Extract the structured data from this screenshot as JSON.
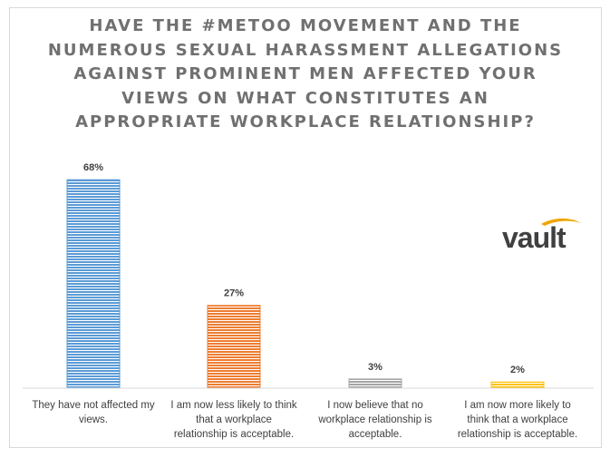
{
  "chart_data": {
    "type": "bar",
    "title": "HAVE THE #METOO MOVEMENT AND THE NUMEROUS SEXUAL HARASSMENT ALLEGATIONS AGAINST PROMINENT MEN AFFECTED YOUR VIEWS ON WHAT CONSTITUTES AN APPROPRIATE WORKPLACE RELATIONSHIP?",
    "title_lines": [
      "HAVE THE #METOO MOVEMENT AND THE",
      "NUMEROUS SEXUAL HARASSMENT ALLEGATIONS",
      "AGAINST PROMINENT MEN AFFECTED YOUR",
      "VIEWS ON WHAT CONSTITUTES AN",
      "APPROPRIATE WORKPLACE RELATIONSHIP?"
    ],
    "categories": [
      [
        "They have not affected my",
        "views."
      ],
      [
        "I am now less likely to think",
        "that a workplace",
        "relationship is acceptable."
      ],
      [
        "I now believe that no",
        "workplace relationship is",
        "acceptable."
      ],
      [
        "I am now more likely to",
        "think that a workplace",
        "relationship is acceptable."
      ]
    ],
    "values": [
      68,
      27,
      3,
      2
    ],
    "value_labels": [
      "68%",
      "27%",
      "3%",
      "2%"
    ],
    "colors": [
      "#5b9bd5",
      "#ed7d31",
      "#a5a5a5",
      "#ffc000"
    ],
    "ylim": [
      0,
      100
    ],
    "grid": false,
    "legend": "none"
  },
  "logo": {
    "text": "vault",
    "text_color": "#404040",
    "swoosh_color": "#f0a500"
  }
}
